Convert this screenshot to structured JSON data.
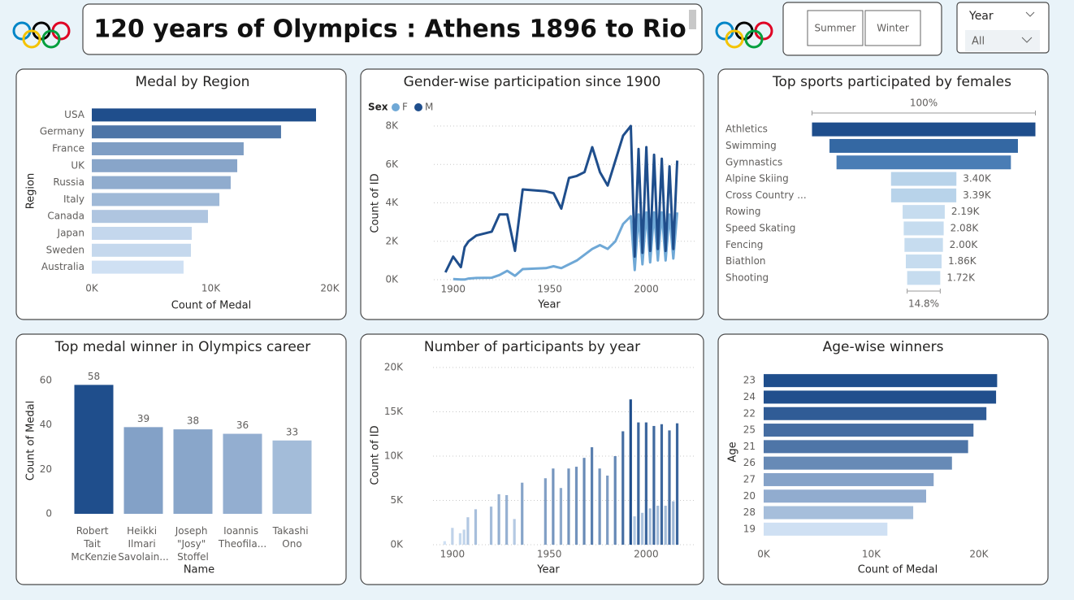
{
  "header": {
    "title": "120 years of Olympics : Athens 1896 to Rio"
  },
  "filters": {
    "season_buttons": [
      "Summer",
      "Winter"
    ],
    "year": {
      "label": "Year",
      "selected": "All"
    }
  },
  "chart_data": [
    {
      "type": "hbar",
      "title": "Medal by Region",
      "categories": [
        "USA",
        "Germany",
        "France",
        "UK",
        "Russia",
        "Italy",
        "Canada",
        "Japan",
        "Sweden",
        "Australia"
      ],
      "values": [
        18840,
        15900,
        12760,
        12220,
        11670,
        10720,
        9760,
        8400,
        8330,
        7710
      ],
      "xlim": [
        0,
        20000
      ],
      "xticks": [
        {
          "value": 0,
          "label": "0K"
        },
        {
          "value": 10000,
          "label": "10K"
        },
        {
          "value": 20000,
          "label": "20K"
        }
      ],
      "x_label": "Count of Medal",
      "y_label": "Region",
      "color_scale": [
        "#cfe0f3",
        "#1f4e8c"
      ]
    },
    {
      "type": "line",
      "title": "Gender-wise participation since 1900",
      "legend_title": "Sex",
      "x": [
        1896,
        1900,
        1904,
        1906,
        1908,
        1912,
        1920,
        1924,
        1928,
        1932,
        1936,
        1948,
        1952,
        1956,
        1960,
        1964,
        1968,
        1972,
        1976,
        1980,
        1984,
        1988,
        1992,
        1994,
        1996,
        1998,
        2000,
        2002,
        2004,
        2006,
        2008,
        2010,
        2012,
        2014,
        2016
      ],
      "series": [
        {
          "name": "F",
          "color": "#6fa8d6",
          "values": [
            null,
            30,
            10,
            10,
            60,
            90,
            100,
            240,
            460,
            200,
            550,
            600,
            700,
            600,
            800,
            1000,
            1300,
            1600,
            1800,
            1600,
            2000,
            2900,
            3300,
            500,
            3400,
            800,
            3500,
            900,
            3500,
            1000,
            3500,
            1000,
            3400,
            1100,
            3500
          ]
        },
        {
          "name": "M",
          "color": "#1f4e8c",
          "values": [
            380,
            1200,
            650,
            1700,
            2000,
            2300,
            2500,
            3400,
            3400,
            1500,
            4700,
            4600,
            4500,
            3700,
            5300,
            5400,
            5600,
            6900,
            5600,
            4900,
            6200,
            7500,
            8000,
            1200,
            6800,
            1400,
            6900,
            1500,
            6500,
            1600,
            6300,
            1500,
            5900,
            1600,
            6200
          ]
        }
      ],
      "xlim": [
        1890,
        2025
      ],
      "xticks": [
        1900,
        1950,
        2000
      ],
      "ylim": [
        0,
        8000
      ],
      "yticks": [
        {
          "value": 0,
          "label": "0K"
        },
        {
          "value": 2000,
          "label": "2K"
        },
        {
          "value": 4000,
          "label": "4K"
        },
        {
          "value": 6000,
          "label": "6K"
        },
        {
          "value": 8000,
          "label": "8K"
        }
      ],
      "x_label": "Year",
      "y_label": "Count of ID",
      "grid": true
    },
    {
      "type": "funnel",
      "title": "Top sports participated by females",
      "categories": [
        "Athletics",
        "Swimming",
        "Gymnastics",
        "Alpine Skiing",
        "Cross Country ...",
        "Rowing",
        "Speed Skating",
        "Fencing",
        "Biathlon",
        "Shooting"
      ],
      "values": [
        11620,
        9800,
        9070,
        3400,
        3390,
        2190,
        2080,
        2000,
        1860,
        1720
      ],
      "value_labels": [
        null,
        null,
        null,
        "3.40K",
        "3.39K",
        "2.19K",
        "2.08K",
        "2.00K",
        "1.86K",
        "1.72K"
      ],
      "colors": [
        "#1f4e8c",
        "#3468a3",
        "#4a7db5",
        "#b8d3ea",
        "#b8d3ea",
        "#c6dcef",
        "#c6dcef",
        "#c6dcef",
        "#c6dcef",
        "#c6dcef"
      ],
      "top_label": "100%",
      "bottom_label": "14.8%"
    },
    {
      "type": "vbar",
      "title": "Top medal winner in Olympics career",
      "categories": [
        "Robert Tait McKenzie",
        "Heikki Ilmari Savolain...",
        "Joseph \"Josy\" Stoffel",
        "Ioannis Theofila...",
        "Takashi Ono"
      ],
      "values": [
        58,
        39,
        38,
        36,
        33
      ],
      "ylim": [
        0,
        64
      ],
      "yticks": [
        0,
        20,
        40,
        60
      ],
      "x_label": "Name",
      "y_label": "Count of Medal",
      "color_scale": [
        "#cfe0f3",
        "#1f4e8c"
      ]
    },
    {
      "type": "column",
      "title": "Number of participants by year",
      "x": [
        1896,
        1900,
        1904,
        1906,
        1908,
        1912,
        1920,
        1924,
        1928,
        1932,
        1936,
        1948,
        1952,
        1956,
        1960,
        1964,
        1968,
        1972,
        1976,
        1980,
        1984,
        1988,
        1992,
        1994,
        1996,
        1998,
        2000,
        2002,
        2004,
        2006,
        2008,
        2010,
        2012,
        2014,
        2016
      ],
      "values": [
        400,
        1900,
        1300,
        1700,
        3100,
        4000,
        4300,
        5700,
        5600,
        2900,
        7000,
        7500,
        8600,
        6400,
        8600,
        8800,
        9800,
        11000,
        8600,
        7800,
        10000,
        12800,
        16400,
        3200,
        13800,
        3600,
        13800,
        4100,
        13400,
        4400,
        13600,
        4400,
        12900,
        4900,
        13700
      ],
      "xlim": [
        1890,
        2025
      ],
      "xticks": [
        1900,
        1950,
        2000
      ],
      "ylim": [
        0,
        20000
      ],
      "yticks": [
        {
          "value": 0,
          "label": "0K"
        },
        {
          "value": 5000,
          "label": "5K"
        },
        {
          "value": 10000,
          "label": "10K"
        },
        {
          "value": 15000,
          "label": "15K"
        },
        {
          "value": 20000,
          "label": "20K"
        }
      ],
      "x_label": "Year",
      "y_label": "Count of ID",
      "grid": true,
      "color_scale": [
        "#cfe0f3",
        "#1f4e8c"
      ]
    },
    {
      "type": "hbar",
      "title": "Age-wise winners",
      "categories": [
        "23",
        "24",
        "22",
        "25",
        "21",
        "26",
        "27",
        "20",
        "28",
        "19"
      ],
      "values": [
        21700,
        21600,
        20700,
        19500,
        19000,
        17500,
        15800,
        15100,
        13900,
        11500
      ],
      "xlim": [
        0,
        22500
      ],
      "xticks": [
        {
          "value": 0,
          "label": "0K"
        },
        {
          "value": 10000,
          "label": "10K"
        },
        {
          "value": 20000,
          "label": "20K"
        }
      ],
      "x_label": "Count of Medal",
      "y_label": "Age",
      "color_scale": [
        "#cfe0f3",
        "#1f4e8c"
      ]
    }
  ]
}
